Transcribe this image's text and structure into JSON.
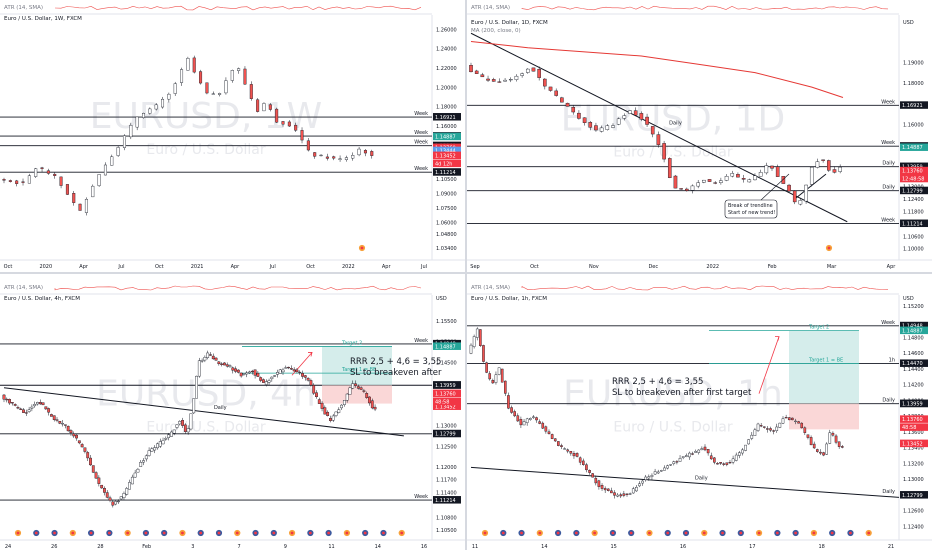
{
  "colors": {
    "up": "#ffffff",
    "down": "#ef5350",
    "outline": "#131722",
    "ma": "#e53935",
    "teal": "#26a69a",
    "line": "#131722",
    "watermark": "#e8e9ed",
    "label_bg": "#131722",
    "price_red": "#f23645",
    "price_blue": "#2962ff"
  },
  "chart_data": [
    {
      "id": "w1",
      "type": "candlestick",
      "indicator_label": "ATR (14, SMA)",
      "header": "Euro / U.S. Dollar, 1W, FXCM",
      "watermark_symbol": "EURUSD, 1W",
      "watermark_name": "Euro / U.S. Dollar",
      "currency": "",
      "ylim": [
        1.0234,
        1.2675
      ],
      "y_ticks": [
        "1.26000",
        "1.24000",
        "1.22000",
        "1.20000",
        "1.18000",
        "1.16000",
        "1.14000",
        "1.12000",
        "1.10500",
        "1.09000",
        "1.07500",
        "1.06000",
        "1.04800",
        "1.03400"
      ],
      "x_ticks": [
        "Oct",
        "2020",
        "Apr",
        "Jul",
        "Oct",
        "2021",
        "Apr",
        "Jul",
        "Oct",
        "2022",
        "Apr",
        "Jul"
      ],
      "price_path": [
        [
          0,
          1.105
        ],
        [
          18,
          1.1
        ],
        [
          28,
          1.118
        ],
        [
          40,
          1.108
        ],
        [
          52,
          1.085
        ],
        [
          58,
          1.07
        ],
        [
          66,
          1.095
        ],
        [
          74,
          1.115
        ],
        [
          86,
          1.14
        ],
        [
          100,
          1.172
        ],
        [
          112,
          1.18
        ],
        [
          122,
          1.193
        ],
        [
          130,
          1.215
        ],
        [
          134,
          1.232
        ],
        [
          142,
          1.208
        ],
        [
          150,
          1.19
        ],
        [
          158,
          1.195
        ],
        [
          164,
          1.215
        ],
        [
          170,
          1.222
        ],
        [
          178,
          1.195
        ],
        [
          184,
          1.175
        ],
        [
          190,
          1.185
        ],
        [
          198,
          1.165
        ],
        [
          210,
          1.16
        ],
        [
          222,
          1.13
        ],
        [
          232,
          1.128
        ],
        [
          242,
          1.125
        ],
        [
          252,
          1.13
        ],
        [
          258,
          1.138
        ],
        [
          264,
          1.128
        ]
      ],
      "levels": [
        {
          "label": "Week",
          "value": "1.16921",
          "y": 1.16921,
          "bg": "#131722",
          "fg": "#ffffff"
        },
        {
          "label": "Week",
          "value": "1.14948",
          "y": 1.14948,
          "bg": "#131722",
          "fg": "#ffffff"
        },
        {
          "label": "",
          "value": "1.14887",
          "y": 1.14887,
          "bg": "#26a69a",
          "fg": "#ffffff"
        },
        {
          "label": "Week",
          "value": "1.13960",
          "y": 1.1396,
          "bg": "#131722",
          "fg": "#ffffff"
        },
        {
          "label": "",
          "value": "1.13760",
          "y": 1.1376,
          "bg": "#f23645",
          "fg": "#ffffff"
        },
        {
          "label": "",
          "value": "1.13444",
          "y": 1.13444,
          "bg": "#5d9cec",
          "fg": "#ffffff"
        },
        {
          "label": "Week",
          "value": "1.11214",
          "y": 1.11214,
          "bg": "#131722",
          "fg": "#ffffff"
        }
      ],
      "extra_labels": [
        {
          "value": "1.13452",
          "bg": "#f23645"
        },
        {
          "value": "4d 12h",
          "bg": "#f23645"
        }
      ],
      "level_lines": [
        1.16921,
        1.14948,
        1.1396,
        1.11214
      ],
      "trendlines": []
    },
    {
      "id": "d1",
      "type": "candlestick",
      "indicator_label": "ATR (14, SMA)",
      "header": "Euro / U.S. Dollar, 1D, FXCM",
      "header2": "MA (200, close, 0)",
      "watermark_symbol": "EURUSD, 1D",
      "watermark_name": "Euro / U.S. Dollar",
      "currency": "USD",
      "ylim": [
        1.0955,
        1.2075
      ],
      "y_ticks": [
        "1.19000",
        "1.18000",
        "1.17000",
        "1.16000",
        "1.15000",
        "1.14000",
        "1.13000",
        "1.12400",
        "1.11800",
        "1.11200",
        "1.10600",
        "1.10000"
      ],
      "x_ticks": [
        "Sep",
        "Oct",
        "Nov",
        "Dec",
        "2022",
        "Feb",
        "Mar",
        "Apr"
      ],
      "price_path": [
        [
          0,
          1.188
        ],
        [
          10,
          1.183
        ],
        [
          22,
          1.18
        ],
        [
          34,
          1.182
        ],
        [
          46,
          1.188
        ],
        [
          54,
          1.18
        ],
        [
          66,
          1.172
        ],
        [
          80,
          1.163
        ],
        [
          92,
          1.157
        ],
        [
          104,
          1.16
        ],
        [
          116,
          1.167
        ],
        [
          124,
          1.163
        ],
        [
          130,
          1.158
        ],
        [
          138,
          1.148
        ],
        [
          146,
          1.13
        ],
        [
          156,
          1.128
        ],
        [
          166,
          1.133
        ],
        [
          178,
          1.132
        ],
        [
          188,
          1.136
        ],
        [
          198,
          1.132
        ],
        [
          206,
          1.136
        ],
        [
          214,
          1.141
        ],
        [
          222,
          1.133
        ],
        [
          228,
          1.128
        ],
        [
          234,
          1.119
        ],
        [
          240,
          1.131
        ],
        [
          246,
          1.143
        ],
        [
          252,
          1.142
        ],
        [
          258,
          1.136
        ],
        [
          262,
          1.139
        ]
      ],
      "ma_path": [
        [
          0,
          1.2
        ],
        [
          40,
          1.197
        ],
        [
          80,
          1.195
        ],
        [
          120,
          1.193
        ],
        [
          160,
          1.189
        ],
        [
          200,
          1.185
        ],
        [
          240,
          1.178
        ],
        [
          262,
          1.173
        ]
      ],
      "levels": [
        {
          "label": "Week",
          "value": "1.16921",
          "y": 1.16921,
          "bg": "#131722",
          "fg": "#ffffff"
        },
        {
          "label": "Week",
          "value": "1.14948",
          "y": 1.14948,
          "bg": "#131722",
          "fg": "#ffffff"
        },
        {
          "label": "",
          "value": "1.14887",
          "y": 1.14887,
          "bg": "#26a69a",
          "fg": "#ffffff"
        },
        {
          "label": "",
          "value": "1.13960",
          "y": 1.1396,
          "bg": "#131722",
          "fg": "#ffffff"
        },
        {
          "label": "Daily",
          "value": "1.13959",
          "y": 1.13959,
          "bg": "#131722",
          "fg": "#ffffff"
        },
        {
          "label": "",
          "value": "1.13760",
          "y": 1.1376,
          "bg": "#f23645",
          "fg": "#ffffff"
        },
        {
          "label": "",
          "value": "1.13452",
          "y": 1.13452,
          "bg": "#f23645",
          "fg": "#ffffff"
        },
        {
          "label": "Daily",
          "value": "1.12799",
          "y": 1.12799,
          "bg": "#131722",
          "fg": "#ffffff"
        },
        {
          "label": "Week",
          "value": "1.11214",
          "y": 1.11214,
          "bg": "#131722",
          "fg": "#ffffff"
        }
      ],
      "extra_labels": [
        {
          "value": "12:48:58",
          "bg": "#f23645"
        }
      ],
      "level_lines": [
        1.16921,
        1.14948,
        1.13959,
        1.12799,
        1.11214
      ],
      "trendlines": [
        {
          "from": [
            0,
            1.204
          ],
          "to": [
            265,
            1.113
          ],
          "label": "Daily"
        },
        {
          "from": [
            228,
            1.124
          ],
          "to": [
            250,
            1.136
          ],
          "label": ""
        }
      ],
      "annotation": [
        "Break of trendline",
        "Start of new trend!"
      ]
    },
    {
      "id": "h4",
      "type": "candlestick",
      "indicator_label": "ATR (14, SMA)",
      "header": "Euro / U.S. Dollar, 4h, FXCM",
      "watermark_symbol": "EURUSD, 4h",
      "watermark_name": "Euro / U.S. Dollar",
      "currency": "USD",
      "ylim": [
        1.1045,
        1.1595
      ],
      "y_ticks": [
        "1.15500",
        "1.15000",
        "1.14500",
        "1.14000",
        "1.13500",
        "1.13000",
        "1.12500",
        "1.12000",
        "1.11700",
        "1.11400",
        "1.10800",
        "1.10500"
      ],
      "x_ticks": [
        "24",
        "26",
        "28",
        "Feb",
        "3",
        "7",
        "9",
        "11",
        "14",
        "16"
      ],
      "price_path": [
        [
          0,
          1.137
        ],
        [
          12,
          1.135
        ],
        [
          26,
          1.133
        ],
        [
          40,
          1.136
        ],
        [
          54,
          1.132
        ],
        [
          68,
          1.13
        ],
        [
          80,
          1.127
        ],
        [
          92,
          1.123
        ],
        [
          100,
          1.118
        ],
        [
          110,
          1.114
        ],
        [
          120,
          1.111
        ],
        [
          130,
          1.113
        ],
        [
          140,
          1.117
        ],
        [
          150,
          1.121
        ],
        [
          160,
          1.124
        ],
        [
          172,
          1.126
        ],
        [
          182,
          1.128
        ],
        [
          192,
          1.131
        ],
        [
          200,
          1.128
        ],
        [
          206,
          1.135
        ],
        [
          212,
          1.145
        ],
        [
          222,
          1.147
        ],
        [
          234,
          1.145
        ],
        [
          246,
          1.144
        ],
        [
          258,
          1.142
        ],
        [
          270,
          1.143
        ],
        [
          282,
          1.14
        ],
        [
          294,
          1.142
        ],
        [
          306,
          1.144
        ],
        [
          318,
          1.143
        ],
        [
          330,
          1.141
        ],
        [
          342,
          1.135
        ],
        [
          354,
          1.131
        ],
        [
          366,
          1.135
        ],
        [
          378,
          1.14
        ],
        [
          390,
          1.138
        ],
        [
          400,
          1.134
        ]
      ],
      "levels": [
        {
          "label": "Week",
          "value": "1.14948",
          "y": 1.14948,
          "bg": "#131722",
          "fg": "#ffffff"
        },
        {
          "label": "",
          "value": "1.14887",
          "y": 1.14887,
          "bg": "#26a69a",
          "fg": "#ffffff"
        },
        {
          "label": "",
          "value": "1.13960",
          "y": 1.1396,
          "bg": "#131722",
          "fg": "#ffffff"
        },
        {
          "label": "",
          "value": "1.13959",
          "y": 1.13959,
          "bg": "#131722",
          "fg": "#ffffff"
        },
        {
          "label": "",
          "value": "1.13760",
          "y": 1.1376,
          "bg": "#f23645",
          "fg": "#ffffff"
        },
        {
          "label": "",
          "value": "1.13452",
          "y": 1.13452,
          "bg": "#f23645",
          "fg": "#ffffff"
        },
        {
          "label": "",
          "value": "1.12799",
          "y": 1.12799,
          "bg": "#131722",
          "fg": "#ffffff"
        },
        {
          "label": "Week",
          "value": "1.11214",
          "y": 1.11214,
          "bg": "#131722",
          "fg": "#ffffff"
        }
      ],
      "extra_labels": [
        {
          "value": "48:58",
          "bg": "#f23645"
        }
      ],
      "level_lines": [
        1.14948,
        1.13959,
        1.12799,
        1.11214
      ],
      "trendlines": [
        {
          "from": [
            0,
            1.139
          ],
          "to": [
            430,
            1.1275
          ],
          "label": "Daily"
        }
      ],
      "targets": [
        {
          "label": "Target 2",
          "y": 1.14887
        },
        {
          "label": "Target 1 = BE",
          "y": 1.1425
        }
      ],
      "rrr_text": [
        "RRR 2,5 + 4,6 = 3,55",
        "SL to breakeven after"
      ]
    },
    {
      "id": "h1",
      "type": "candlestick",
      "indicator_label": "ATR (14, SMA)",
      "header": "Euro / U.S. Dollar, 1h, FXCM",
      "watermark_symbol": "EURUSD, 1h",
      "watermark_name": "Euro / U.S. Dollar",
      "currency": "USD",
      "ylim": [
        1.1233,
        1.1525
      ],
      "y_ticks": [
        "1.15200",
        "1.14800",
        "1.14600",
        "1.14400",
        "1.14200",
        "1.14000",
        "1.13800",
        "1.13600",
        "1.13400",
        "1.13200",
        "1.13000",
        "1.12800",
        "1.12600",
        "1.12400"
      ],
      "x_ticks": [
        "11",
        "14",
        "15",
        "16",
        "17",
        "18",
        "21"
      ],
      "price_path": [
        [
          0,
          1.146
        ],
        [
          8,
          1.149
        ],
        [
          14,
          1.144
        ],
        [
          20,
          1.142
        ],
        [
          26,
          1.144
        ],
        [
          34,
          1.139
        ],
        [
          44,
          1.137
        ],
        [
          54,
          1.138
        ],
        [
          66,
          1.136
        ],
        [
          78,
          1.134
        ],
        [
          90,
          1.133
        ],
        [
          100,
          1.131
        ],
        [
          110,
          1.129
        ],
        [
          122,
          1.128
        ],
        [
          134,
          1.128
        ],
        [
          146,
          1.13
        ],
        [
          158,
          1.131
        ],
        [
          170,
          1.132
        ],
        [
          182,
          1.133
        ],
        [
          196,
          1.134
        ],
        [
          206,
          1.132
        ],
        [
          218,
          1.132
        ],
        [
          230,
          1.134
        ],
        [
          242,
          1.137
        ],
        [
          254,
          1.136
        ],
        [
          264,
          1.138
        ],
        [
          276,
          1.137
        ],
        [
          288,
          1.134
        ],
        [
          296,
          1.133
        ],
        [
          302,
          1.136
        ],
        [
          310,
          1.134
        ]
      ],
      "levels": [
        {
          "label": "Week",
          "value": "1.14948",
          "y": 1.14948,
          "bg": "#131722",
          "fg": "#ffffff"
        },
        {
          "label": "",
          "value": "1.14887",
          "y": 1.14887,
          "bg": "#26a69a",
          "fg": "#ffffff"
        },
        {
          "label": "1h",
          "value": "1.14470",
          "y": 1.1447,
          "bg": "#131722",
          "fg": "#ffffff"
        },
        {
          "label": "Daily",
          "value": "1.13960",
          "y": 1.1396,
          "bg": "#131722",
          "fg": "#ffffff"
        },
        {
          "label": "",
          "value": "1.13959",
          "y": 1.13959,
          "bg": "#131722",
          "fg": "#ffffff"
        },
        {
          "label": "",
          "value": "1.13760",
          "y": 1.1376,
          "bg": "#f23645",
          "fg": "#ffffff"
        },
        {
          "label": "",
          "value": "1.13452",
          "y": 1.13452,
          "bg": "#f23645",
          "fg": "#ffffff"
        },
        {
          "label": "Daily",
          "value": "1.12799",
          "y": 1.12799,
          "bg": "#131722",
          "fg": "#ffffff"
        }
      ],
      "extra_labels": [
        {
          "value": "48:58",
          "bg": "#f23645"
        }
      ],
      "level_lines": [
        1.14948,
        1.1447,
        1.13959
      ],
      "trendlines": [
        {
          "from": [
            0,
            1.1315
          ],
          "to": [
            420,
            1.1277
          ],
          "label": "Daily"
        }
      ],
      "targets": [
        {
          "label": "Target 2",
          "y": 1.14887
        },
        {
          "label": "Target 1 = BE",
          "y": 1.1447
        }
      ],
      "rrr_text": [
        "RRR 2,5 + 4,6 = 3,55",
        "SL to breakeven after first target"
      ]
    }
  ]
}
